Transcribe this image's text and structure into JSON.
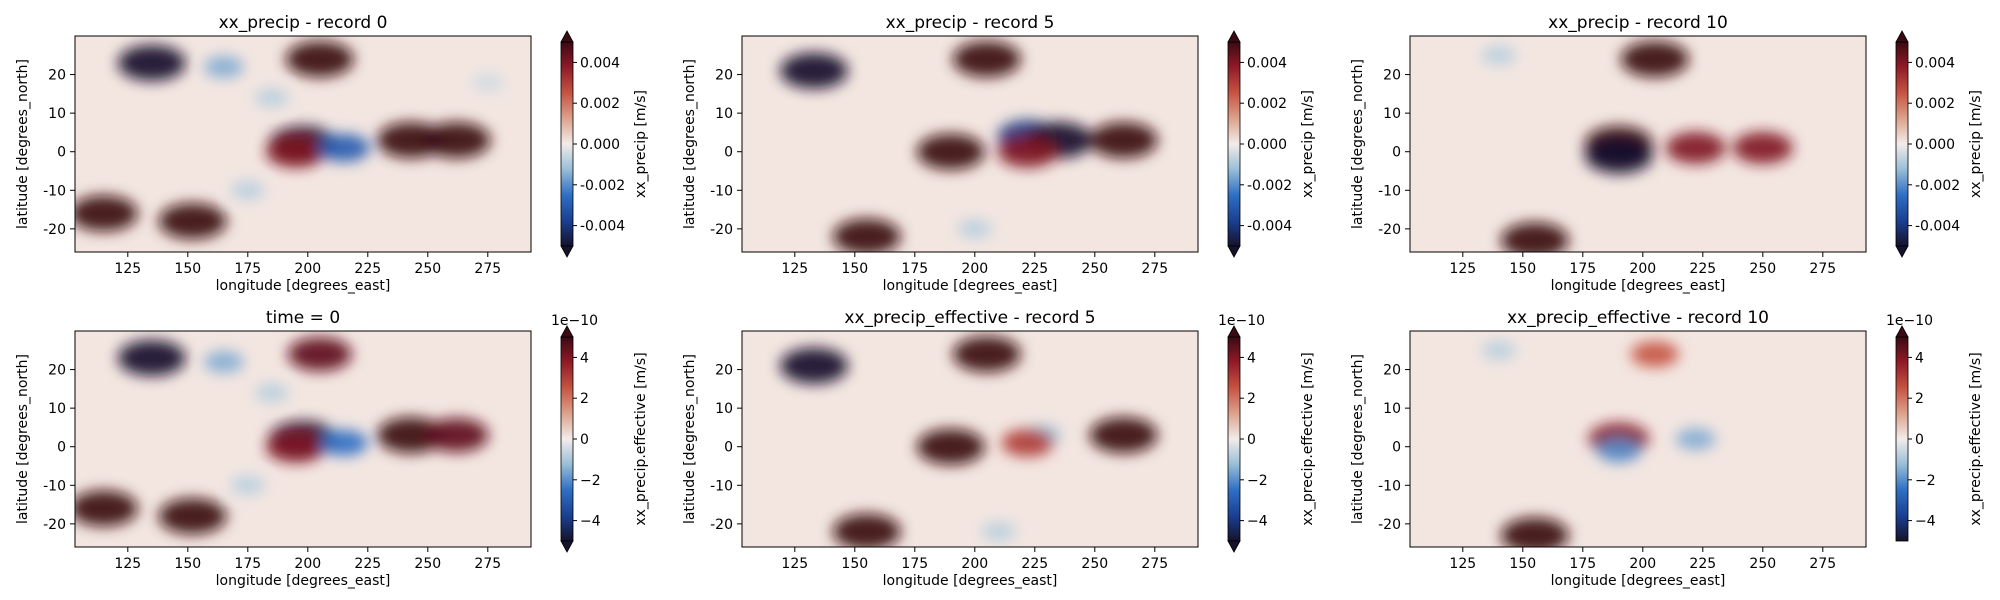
{
  "chart_data": [
    {
      "type": "heatmap",
      "title": "xx_precip - record 0",
      "xlabel": "longitude [degrees_east]",
      "ylabel": "latitude [degrees_north]",
      "xlim": [
        103,
        293
      ],
      "ylim": [
        -26,
        30
      ],
      "xticks": [
        125,
        150,
        175,
        200,
        225,
        250,
        275
      ],
      "yticks": [
        -20,
        -10,
        0,
        10,
        20
      ],
      "colorbar": {
        "label": "xx_precip [m/s]",
        "range": [
          -0.005,
          0.005
        ],
        "ticks": [
          "-0.004",
          "-0.002",
          "0.000",
          "0.002",
          "0.004"
        ],
        "tick_values": [
          -0.004,
          -0.002,
          0.0,
          0.002,
          0.004
        ],
        "exponent": "",
        "extend": "both"
      },
      "features": [
        {
          "lon": 135,
          "lat": 23,
          "value": -0.005
        },
        {
          "lon": 165,
          "lat": 22,
          "value": -0.0015
        },
        {
          "lon": 205,
          "lat": 24,
          "value": 0.005
        },
        {
          "lon": 185,
          "lat": 14,
          "value": -0.0008
        },
        {
          "lon": 198,
          "lat": 2,
          "value": -0.005
        },
        {
          "lon": 195,
          "lat": 0,
          "value": 0.004
        },
        {
          "lon": 215,
          "lat": 1,
          "value": -0.003
        },
        {
          "lon": 243,
          "lat": 3,
          "value": 0.005
        },
        {
          "lon": 262,
          "lat": 3,
          "value": 0.005
        },
        {
          "lon": 275,
          "lat": 18,
          "value": -0.0005
        },
        {
          "lon": 115,
          "lat": -16,
          "value": 0.005
        },
        {
          "lon": 152,
          "lat": -18,
          "value": 0.005
        },
        {
          "lon": 175,
          "lat": -10,
          "value": -0.0008
        }
      ]
    },
    {
      "type": "heatmap",
      "title": "xx_precip - record 5",
      "xlabel": "longitude [degrees_east]",
      "ylabel": "latitude [degrees_north]",
      "xlim": [
        103,
        293
      ],
      "ylim": [
        -26,
        30
      ],
      "xticks": [
        125,
        150,
        175,
        200,
        225,
        250,
        275
      ],
      "yticks": [
        -20,
        -10,
        0,
        10,
        20
      ],
      "colorbar": {
        "label": "xx_precip [m/s]",
        "range": [
          -0.005,
          0.005
        ],
        "ticks": [
          "-0.004",
          "-0.002",
          "0.000",
          "0.002",
          "0.004"
        ],
        "tick_values": [
          -0.004,
          -0.002,
          0.0,
          0.002,
          0.004
        ],
        "exponent": "",
        "extend": "both"
      },
      "features": [
        {
          "lon": 133,
          "lat": 21,
          "value": -0.005
        },
        {
          "lon": 205,
          "lat": 24,
          "value": 0.005
        },
        {
          "lon": 190,
          "lat": 0,
          "value": 0.005
        },
        {
          "lon": 222,
          "lat": 4,
          "value": -0.004
        },
        {
          "lon": 235,
          "lat": 3,
          "value": -0.005
        },
        {
          "lon": 222,
          "lat": 0,
          "value": 0.004
        },
        {
          "lon": 262,
          "lat": 3,
          "value": 0.005
        },
        {
          "lon": 155,
          "lat": -22,
          "value": 0.005
        },
        {
          "lon": 200,
          "lat": -20,
          "value": -0.0008
        }
      ]
    },
    {
      "type": "heatmap",
      "title": "xx_precip - record 10",
      "xlabel": "longitude [degrees_east]",
      "ylabel": "latitude [degrees_north]",
      "xlim": [
        103,
        293
      ],
      "ylim": [
        -26,
        30
      ],
      "xticks": [
        125,
        150,
        175,
        200,
        225,
        250,
        275
      ],
      "yticks": [
        -20,
        -10,
        0,
        10,
        20
      ],
      "colorbar": {
        "label": "xx_precip [m/s]",
        "range": [
          -0.005,
          0.005
        ],
        "ticks": [
          "-0.004",
          "-0.002",
          "0.000",
          "0.002",
          "0.004"
        ],
        "tick_values": [
          -0.004,
          -0.002,
          0.0,
          0.002,
          0.004
        ],
        "exponent": "",
        "extend": "both"
      },
      "features": [
        {
          "lon": 140,
          "lat": 25,
          "value": -0.0008
        },
        {
          "lon": 205,
          "lat": 24,
          "value": 0.005
        },
        {
          "lon": 190,
          "lat": 2,
          "value": 0.005
        },
        {
          "lon": 190,
          "lat": -1,
          "value": -0.005
        },
        {
          "lon": 222,
          "lat": 1,
          "value": 0.004
        },
        {
          "lon": 250,
          "lat": 1,
          "value": 0.004
        },
        {
          "lon": 155,
          "lat": -23,
          "value": 0.005
        }
      ]
    },
    {
      "type": "heatmap",
      "title": "time = 0",
      "xlabel": "longitude [degrees_east]",
      "ylabel": "latitude [degrees_north]",
      "xlim": [
        103,
        293
      ],
      "ylim": [
        -26,
        30
      ],
      "xticks": [
        125,
        150,
        175,
        200,
        225,
        250,
        275
      ],
      "yticks": [
        -20,
        -10,
        0,
        10,
        20
      ],
      "colorbar": {
        "label": "xx_precip.effective [m/s]",
        "range": [
          -5,
          5
        ],
        "ticks": [
          "−4",
          "−2",
          "0",
          "2",
          "4"
        ],
        "tick_values": [
          -4,
          -2,
          0,
          2,
          4
        ],
        "exponent": "1e−10",
        "extend": "both"
      },
      "features": [
        {
          "lon": 135,
          "lat": 23,
          "value": -5
        },
        {
          "lon": 165,
          "lat": 22,
          "value": -1.5
        },
        {
          "lon": 205,
          "lat": 24,
          "value": 4.5
        },
        {
          "lon": 185,
          "lat": 14,
          "value": -0.8
        },
        {
          "lon": 198,
          "lat": 2,
          "value": -5
        },
        {
          "lon": 195,
          "lat": 0,
          "value": 4
        },
        {
          "lon": 215,
          "lat": 1,
          "value": -2.5
        },
        {
          "lon": 243,
          "lat": 3,
          "value": 5
        },
        {
          "lon": 262,
          "lat": 3,
          "value": 4.5
        },
        {
          "lon": 115,
          "lat": -16,
          "value": 5
        },
        {
          "lon": 152,
          "lat": -18,
          "value": 5
        },
        {
          "lon": 175,
          "lat": -10,
          "value": -0.8
        }
      ]
    },
    {
      "type": "heatmap",
      "title": "xx_precip_effective - record 5",
      "xlabel": "longitude [degrees_east]",
      "ylabel": "latitude [degrees_north]",
      "xlim": [
        103,
        293
      ],
      "ylim": [
        -26,
        30
      ],
      "xticks": [
        125,
        150,
        175,
        200,
        225,
        250,
        275
      ],
      "yticks": [
        -20,
        -10,
        0,
        10,
        20
      ],
      "colorbar": {
        "label": "xx_precip.effective [m/s]",
        "range": [
          -5,
          5
        ],
        "ticks": [
          "−4",
          "−2",
          "0",
          "2",
          "4"
        ],
        "tick_values": [
          -4,
          -2,
          0,
          2,
          4
        ],
        "exponent": "1e−10",
        "extend": "both"
      },
      "features": [
        {
          "lon": 133,
          "lat": 21,
          "value": -5
        },
        {
          "lon": 205,
          "lat": 24,
          "value": 5
        },
        {
          "lon": 190,
          "lat": 0,
          "value": 5
        },
        {
          "lon": 228,
          "lat": 3,
          "value": -1.2
        },
        {
          "lon": 222,
          "lat": 1,
          "value": 3
        },
        {
          "lon": 262,
          "lat": 3,
          "value": 5
        },
        {
          "lon": 155,
          "lat": -22,
          "value": 5
        },
        {
          "lon": 210,
          "lat": -22,
          "value": -0.8
        }
      ]
    },
    {
      "type": "heatmap",
      "title": "xx_precip_effective - record 10",
      "xlabel": "longitude [degrees_east]",
      "ylabel": "latitude [degrees_north]",
      "xlim": [
        103,
        293
      ],
      "ylim": [
        -26,
        30
      ],
      "xticks": [
        125,
        150,
        175,
        200,
        225,
        250,
        275
      ],
      "yticks": [
        -20,
        -10,
        0,
        10,
        20
      ],
      "colorbar": {
        "label": "xx_precip.effective [m/s]",
        "range": [
          -5,
          5
        ],
        "ticks": [
          "−4",
          "−2",
          "0",
          "2",
          "4"
        ],
        "tick_values": [
          -4,
          -2,
          0,
          2,
          4
        ],
        "exponent": "1e−10",
        "extend": "max"
      },
      "features": [
        {
          "lon": 140,
          "lat": 25,
          "value": -0.8
        },
        {
          "lon": 205,
          "lat": 24,
          "value": 2.5
        },
        {
          "lon": 190,
          "lat": 2,
          "value": 4
        },
        {
          "lon": 190,
          "lat": -1,
          "value": -2
        },
        {
          "lon": 222,
          "lat": 2,
          "value": -1.5
        },
        {
          "lon": 155,
          "lat": -23,
          "value": 5
        }
      ]
    }
  ]
}
